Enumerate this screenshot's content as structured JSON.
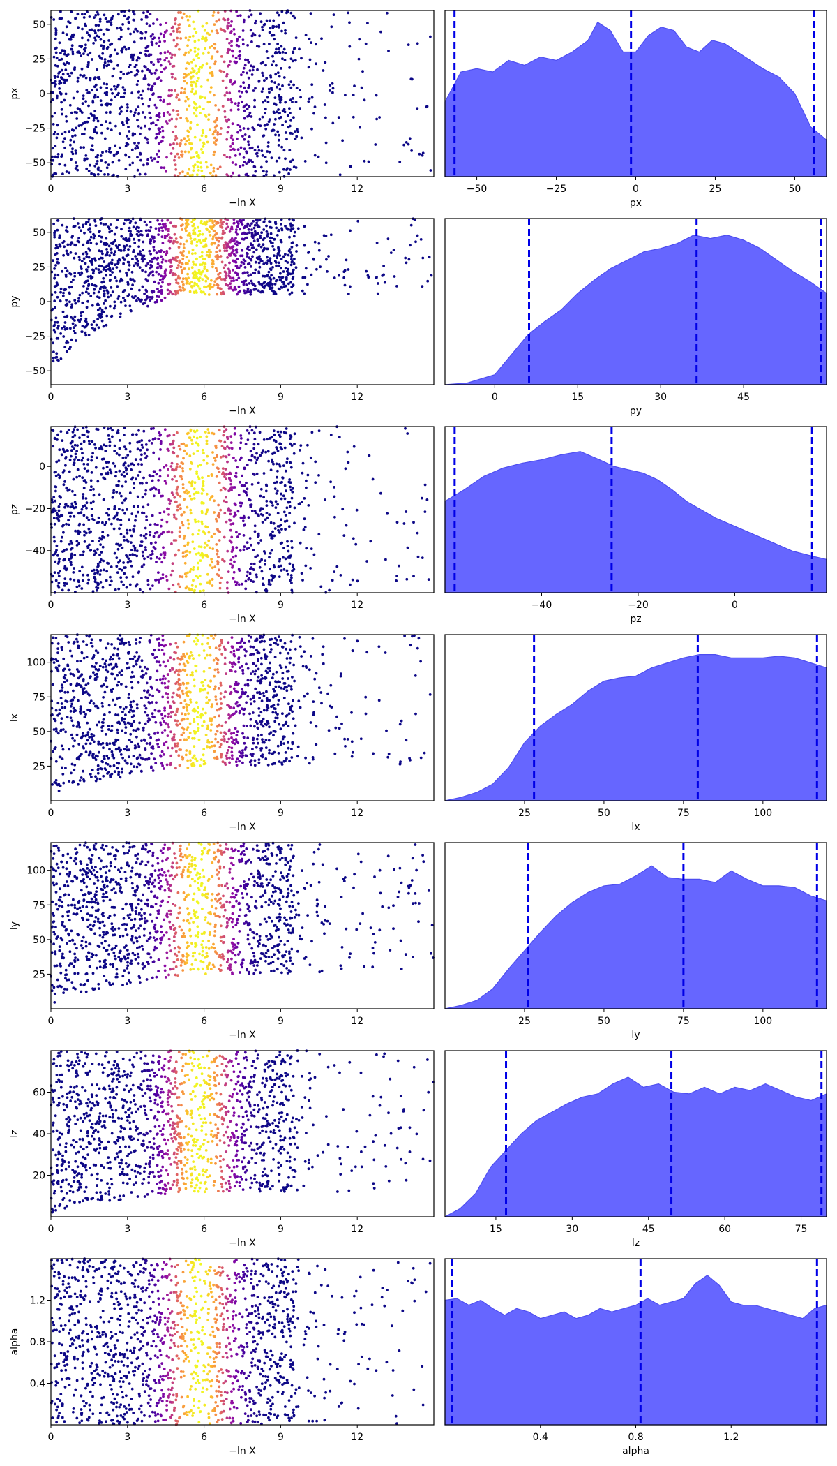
{
  "colors": {
    "density_fill": "#6666ff",
    "density_edge": "#4d4df0",
    "quantile_line": "#0000e6",
    "axes": "#000000",
    "background": "#ffffff"
  },
  "colormap": "plasma",
  "chart_data": [
    {
      "type": "scatter",
      "param": "px",
      "xlabel": "−ln X",
      "ylabel": "px",
      "xlim": [
        0,
        15
      ],
      "ylim": [
        -60,
        60
      ],
      "xticks": [
        0,
        3,
        6,
        9,
        12
      ],
      "yticks": [
        -50,
        -25,
        0,
        25,
        50
      ],
      "point_density": "uniform",
      "trend": "flat"
    },
    {
      "type": "area",
      "param": "px",
      "xlabel": "px",
      "ylabel": "",
      "xlim": [
        -60,
        60
      ],
      "xticks": [
        -50,
        -25,
        0,
        25,
        50
      ],
      "curve_x": [
        -60,
        -55,
        -50,
        -45,
        -40,
        -35,
        -30,
        -25,
        -20,
        -15,
        -12,
        -8,
        -4,
        0,
        4,
        8,
        12,
        16,
        20,
        24,
        28,
        32,
        36,
        40,
        45,
        50,
        55,
        60
      ],
      "curve_y": [
        0.45,
        0.63,
        0.65,
        0.63,
        0.7,
        0.67,
        0.72,
        0.7,
        0.75,
        0.82,
        0.93,
        0.88,
        0.75,
        0.75,
        0.85,
        0.9,
        0.88,
        0.78,
        0.75,
        0.82,
        0.8,
        0.75,
        0.7,
        0.65,
        0.6,
        0.5,
        0.3,
        0.22
      ],
      "quantiles": [
        -57,
        -1.5,
        56
      ]
    },
    {
      "type": "scatter",
      "param": "py",
      "xlabel": "−ln X",
      "ylabel": "py",
      "xlim": [
        0,
        15
      ],
      "ylim": [
        -60,
        60
      ],
      "xticks": [
        0,
        3,
        6,
        9,
        12
      ],
      "yticks": [
        -50,
        -25,
        0,
        25,
        50
      ],
      "point_density": "uniform",
      "trend": "rising-floor",
      "floor_start": -60,
      "floor_end": 5,
      "floor_x_end": 5
    },
    {
      "type": "area",
      "param": "py",
      "xlabel": "py",
      "ylabel": "",
      "xlim": [
        -9,
        60
      ],
      "xticks": [
        0,
        15,
        30,
        45
      ],
      "curve_x": [
        -9,
        -5,
        0,
        3,
        6,
        9,
        12,
        15,
        18,
        21,
        24,
        27,
        30,
        33,
        36,
        39,
        42,
        45,
        48,
        51,
        54,
        57,
        60
      ],
      "curve_y": [
        0.0,
        0.01,
        0.06,
        0.18,
        0.3,
        0.38,
        0.45,
        0.55,
        0.63,
        0.7,
        0.75,
        0.8,
        0.82,
        0.85,
        0.9,
        0.88,
        0.9,
        0.87,
        0.82,
        0.75,
        0.68,
        0.62,
        0.55
      ],
      "quantiles": [
        6.2,
        36.5,
        59
      ]
    },
    {
      "type": "scatter",
      "param": "pz",
      "xlabel": "−ln X",
      "ylabel": "pz",
      "xlim": [
        0,
        15
      ],
      "ylim": [
        -60,
        19
      ],
      "xticks": [
        0,
        3,
        6,
        9,
        12
      ],
      "yticks": [
        -40,
        -20,
        0
      ],
      "point_density": "uniform",
      "trend": "flat"
    },
    {
      "type": "area",
      "param": "pz",
      "xlabel": "pz",
      "ylabel": "",
      "xlim": [
        -60,
        19
      ],
      "xticks": [
        -40,
        -20,
        0
      ],
      "curve_x": [
        -60,
        -56,
        -52,
        -48,
        -44,
        -40,
        -36,
        -32,
        -28,
        -25,
        -22,
        -19,
        -16,
        -13,
        -10,
        -7,
        -4,
        0,
        4,
        8,
        12,
        16,
        19
      ],
      "curve_y": [
        0.55,
        0.62,
        0.7,
        0.75,
        0.78,
        0.8,
        0.83,
        0.85,
        0.8,
        0.76,
        0.74,
        0.72,
        0.68,
        0.62,
        0.55,
        0.5,
        0.45,
        0.4,
        0.35,
        0.3,
        0.25,
        0.22,
        0.2
      ],
      "quantiles": [
        -58,
        -25.5,
        16
      ]
    },
    {
      "type": "scatter",
      "param": "lx",
      "xlabel": "−ln X",
      "ylabel": "lx",
      "xlim": [
        0,
        15
      ],
      "ylim": [
        0,
        120
      ],
      "xticks": [
        0,
        3,
        6,
        9,
        12
      ],
      "yticks": [
        25,
        50,
        75,
        100
      ],
      "point_density": "uniform",
      "trend": "rising-floor",
      "floor_start": 0,
      "floor_end": 25,
      "floor_x_end": 6
    },
    {
      "type": "area",
      "param": "lx",
      "xlabel": "lx",
      "ylabel": "",
      "xlim": [
        0,
        120
      ],
      "xticks": [
        25,
        50,
        75,
        100
      ],
      "curve_x": [
        0,
        5,
        10,
        15,
        20,
        25,
        30,
        35,
        40,
        45,
        50,
        55,
        60,
        65,
        70,
        75,
        80,
        85,
        90,
        95,
        100,
        105,
        110,
        115,
        120
      ],
      "curve_y": [
        0.0,
        0.02,
        0.05,
        0.1,
        0.2,
        0.35,
        0.45,
        0.52,
        0.58,
        0.66,
        0.72,
        0.74,
        0.75,
        0.8,
        0.83,
        0.86,
        0.88,
        0.88,
        0.86,
        0.86,
        0.86,
        0.87,
        0.86,
        0.83,
        0.8
      ],
      "quantiles": [
        28,
        79.5,
        117
      ]
    },
    {
      "type": "scatter",
      "param": "ly",
      "xlabel": "−ln X",
      "ylabel": "ly",
      "xlim": [
        0,
        15
      ],
      "ylim": [
        0,
        120
      ],
      "xticks": [
        0,
        3,
        6,
        9,
        12
      ],
      "yticks": [
        25,
        50,
        75,
        100
      ],
      "point_density": "uniform",
      "trend": "rising-floor",
      "floor_start": 0,
      "floor_end": 25,
      "floor_x_end": 6
    },
    {
      "type": "area",
      "param": "ly",
      "xlabel": "ly",
      "ylabel": "",
      "xlim": [
        0,
        120
      ],
      "xticks": [
        25,
        50,
        75,
        100
      ],
      "curve_x": [
        0,
        5,
        10,
        15,
        20,
        25,
        30,
        35,
        40,
        45,
        50,
        55,
        60,
        65,
        70,
        75,
        80,
        85,
        90,
        95,
        100,
        105,
        110,
        115,
        120
      ],
      "curve_y": [
        0.0,
        0.02,
        0.05,
        0.12,
        0.24,
        0.35,
        0.46,
        0.56,
        0.64,
        0.7,
        0.74,
        0.75,
        0.8,
        0.86,
        0.79,
        0.78,
        0.78,
        0.76,
        0.83,
        0.78,
        0.74,
        0.74,
        0.73,
        0.68,
        0.65
      ],
      "quantiles": [
        26,
        75,
        117
      ]
    },
    {
      "type": "scatter",
      "param": "lz",
      "xlabel": "−ln X",
      "ylabel": "lz",
      "xlim": [
        0,
        15
      ],
      "ylim": [
        0,
        80
      ],
      "xticks": [
        0,
        3,
        6,
        9,
        12
      ],
      "yticks": [
        20,
        40,
        60
      ],
      "point_density": "uniform",
      "trend": "rising-floor",
      "floor_start": 0,
      "floor_end": 12,
      "floor_x_end": 6
    },
    {
      "type": "area",
      "param": "lz",
      "xlabel": "lz",
      "ylabel": "",
      "xlim": [
        5,
        80
      ],
      "xticks": [
        15,
        30,
        45,
        60,
        75
      ],
      "curve_x": [
        5,
        8,
        11,
        14,
        17,
        20,
        23,
        26,
        29,
        32,
        35,
        38,
        41,
        44,
        47,
        50,
        53,
        56,
        59,
        62,
        65,
        68,
        71,
        74,
        77,
        80
      ],
      "curve_y": [
        0.0,
        0.05,
        0.14,
        0.3,
        0.4,
        0.5,
        0.58,
        0.63,
        0.68,
        0.72,
        0.74,
        0.8,
        0.84,
        0.78,
        0.8,
        0.75,
        0.74,
        0.78,
        0.74,
        0.78,
        0.76,
        0.8,
        0.76,
        0.72,
        0.7,
        0.74
      ],
      "quantiles": [
        17,
        49.5,
        79
      ]
    },
    {
      "type": "scatter",
      "param": "alpha",
      "xlabel": "−ln X",
      "ylabel": "alpha",
      "xlim": [
        0,
        15
      ],
      "ylim": [
        0,
        1.6
      ],
      "xticks": [
        0,
        3,
        6,
        9,
        12
      ],
      "yticks": [
        0.4,
        0.8,
        1.2
      ],
      "point_density": "uniform",
      "trend": "flat"
    },
    {
      "type": "area",
      "param": "alpha",
      "xlabel": "alpha",
      "ylabel": "",
      "xlim": [
        0,
        1.6
      ],
      "xticks": [
        0.4,
        0.8,
        1.2
      ],
      "curve_x": [
        0,
        0.05,
        0.1,
        0.15,
        0.2,
        0.25,
        0.3,
        0.35,
        0.4,
        0.45,
        0.5,
        0.55,
        0.6,
        0.65,
        0.7,
        0.75,
        0.8,
        0.85,
        0.9,
        0.95,
        1.0,
        1.05,
        1.1,
        1.15,
        1.2,
        1.25,
        1.3,
        1.35,
        1.4,
        1.45,
        1.5,
        1.55,
        1.6
      ],
      "curve_y": [
        0.75,
        0.76,
        0.72,
        0.75,
        0.7,
        0.66,
        0.7,
        0.68,
        0.64,
        0.66,
        0.68,
        0.64,
        0.66,
        0.7,
        0.68,
        0.7,
        0.72,
        0.76,
        0.72,
        0.74,
        0.76,
        0.85,
        0.9,
        0.84,
        0.74,
        0.72,
        0.72,
        0.7,
        0.68,
        0.66,
        0.64,
        0.7,
        0.72
      ],
      "quantiles": [
        0.03,
        0.82,
        1.56
      ]
    }
  ]
}
